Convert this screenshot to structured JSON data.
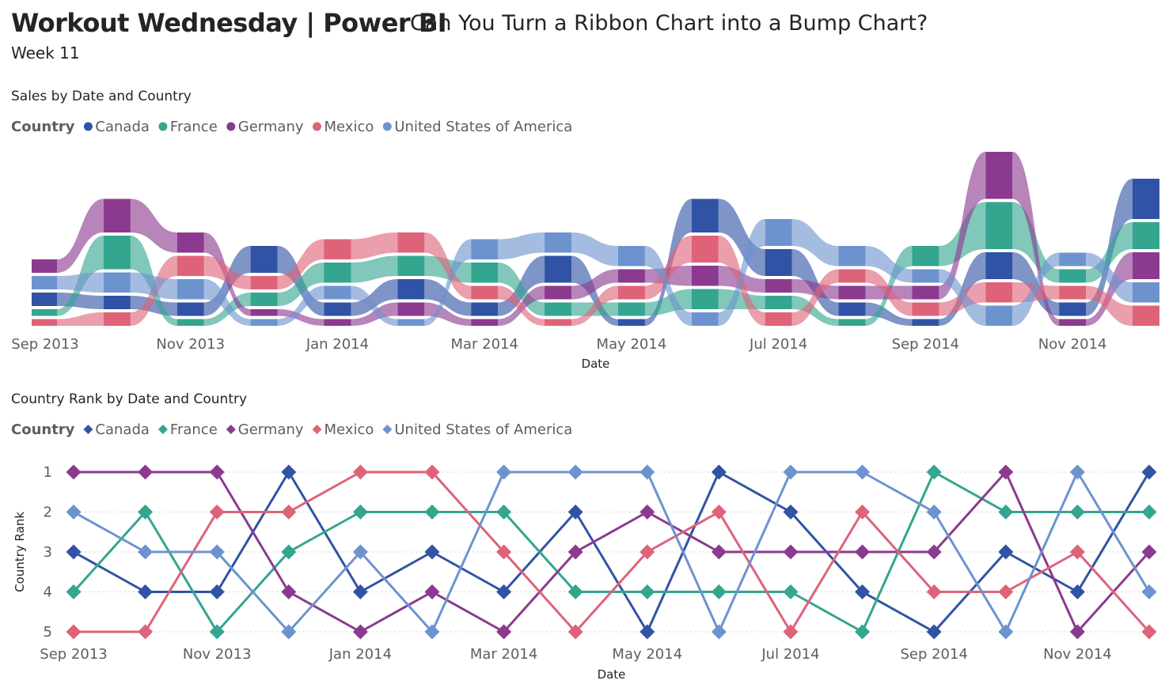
{
  "header": {
    "title": "Workout Wednesday | Power BI",
    "subtitle": "Can You Turn a Ribbon Chart into a Bump Chart?",
    "week": "Week 11"
  },
  "colors": {
    "Canada": "#3153A5",
    "France": "#34A58F",
    "Germany": "#8B3A8F",
    "Mexico": "#DE6379",
    "United States of America": "#6D93CF"
  },
  "chart_data": [
    {
      "type": "area",
      "subtype": "ribbon",
      "title": "Sales by Date and Country",
      "legend_title": "Country",
      "legend_position": "top-left",
      "xlabel": "Date",
      "ylabel": "",
      "x_tick_labels": [
        "Sep 2013",
        "Nov 2013",
        "Jan 2014",
        "Mar 2014",
        "May 2014",
        "Jul 2014",
        "Sep 2014",
        "Nov 2014"
      ],
      "x": [
        "Sep 2013",
        "Oct 2013",
        "Nov 2013",
        "Dec 2013",
        "Jan 2014",
        "Feb 2014",
        "Mar 2014",
        "Apr 2014",
        "May 2014",
        "Jun 2014",
        "Jul 2014",
        "Aug 2014",
        "Sep 2014",
        "Oct 2014",
        "Nov 2014",
        "Dec 2014"
      ],
      "series": [
        {
          "name": "Canada",
          "values": [
            1,
            1,
            1,
            2,
            1,
            1.5,
            1,
            2,
            0.5,
            2.5,
            2,
            1,
            0.5,
            2,
            1,
            3
          ]
        },
        {
          "name": "France",
          "values": [
            0.5,
            2.5,
            0.5,
            1,
            1.5,
            1.5,
            1.5,
            1,
            1,
            1.5,
            1,
            0.5,
            1.5,
            3.5,
            1,
            2
          ]
        },
        {
          "name": "Germany",
          "values": [
            1,
            2.5,
            1.5,
            0.5,
            0.5,
            1,
            0.5,
            1,
            1,
            1.5,
            1,
            1,
            1,
            3.5,
            0.5,
            2
          ]
        },
        {
          "name": "Mexico",
          "values": [
            0.5,
            1,
            1.5,
            1,
            1.5,
            1.5,
            1,
            0.5,
            1,
            2,
            1,
            1,
            1,
            1.5,
            1,
            1.5
          ]
        },
        {
          "name": "United States of America",
          "values": [
            1,
            1.5,
            1.5,
            0.5,
            1,
            0.5,
            1.5,
            1.5,
            1.5,
            1,
            2,
            1.5,
            1,
            1.5,
            1,
            1.5
          ]
        }
      ],
      "ranks": {
        "Canada": [
          3,
          4,
          4,
          1,
          4,
          3,
          4,
          2,
          5,
          1,
          2,
          4,
          5,
          3,
          4,
          1
        ],
        "France": [
          4,
          2,
          5,
          3,
          2,
          2,
          2,
          4,
          4,
          4,
          4,
          5,
          1,
          2,
          2,
          2
        ],
        "Germany": [
          1,
          1,
          1,
          4,
          5,
          4,
          5,
          3,
          2,
          3,
          3,
          3,
          3,
          1,
          5,
          3
        ],
        "Mexico": [
          5,
          5,
          2,
          2,
          1,
          1,
          3,
          5,
          3,
          2,
          5,
          2,
          4,
          4,
          3,
          5
        ],
        "United States of America": [
          2,
          3,
          3,
          5,
          3,
          5,
          1,
          1,
          1,
          5,
          1,
          1,
          2,
          5,
          1,
          4
        ]
      }
    },
    {
      "type": "line",
      "title": "Country Rank by Date and Country",
      "legend_title": "Country",
      "legend_position": "top-left",
      "xlabel": "Date",
      "ylabel": "Country Rank",
      "y_ticks": [
        "1",
        "2",
        "3",
        "4",
        "5"
      ],
      "y_reversed": true,
      "ylim": [
        1,
        5
      ],
      "grid": "horizontal dotted",
      "marker": "diamond",
      "x_tick_labels": [
        "Sep 2013",
        "Nov 2013",
        "Jan 2014",
        "Mar 2014",
        "May 2014",
        "Jul 2014",
        "Sep 2014",
        "Nov 2014"
      ],
      "x": [
        "Sep 2013",
        "Oct 2013",
        "Nov 2013",
        "Dec 2013",
        "Jan 2014",
        "Feb 2014",
        "Mar 2014",
        "Apr 2014",
        "May 2014",
        "Jun 2014",
        "Jul 2014",
        "Aug 2014",
        "Sep 2014",
        "Oct 2014",
        "Nov 2014",
        "Dec 2014"
      ],
      "series": [
        {
          "name": "Canada",
          "values": [
            3,
            4,
            4,
            1,
            4,
            3,
            4,
            2,
            5,
            1,
            2,
            4,
            5,
            3,
            4,
            1
          ]
        },
        {
          "name": "France",
          "values": [
            4,
            2,
            5,
            3,
            2,
            2,
            2,
            4,
            4,
            4,
            4,
            5,
            1,
            2,
            2,
            2
          ]
        },
        {
          "name": "Germany",
          "values": [
            1,
            1,
            1,
            4,
            5,
            4,
            5,
            3,
            2,
            3,
            3,
            3,
            3,
            1,
            5,
            3
          ]
        },
        {
          "name": "Mexico",
          "values": [
            5,
            5,
            2,
            2,
            1,
            1,
            3,
            5,
            3,
            2,
            5,
            2,
            4,
            4,
            3,
            5
          ]
        },
        {
          "name": "United States of America",
          "values": [
            2,
            3,
            3,
            5,
            3,
            5,
            1,
            1,
            1,
            5,
            1,
            1,
            2,
            5,
            1,
            4
          ]
        }
      ]
    }
  ]
}
